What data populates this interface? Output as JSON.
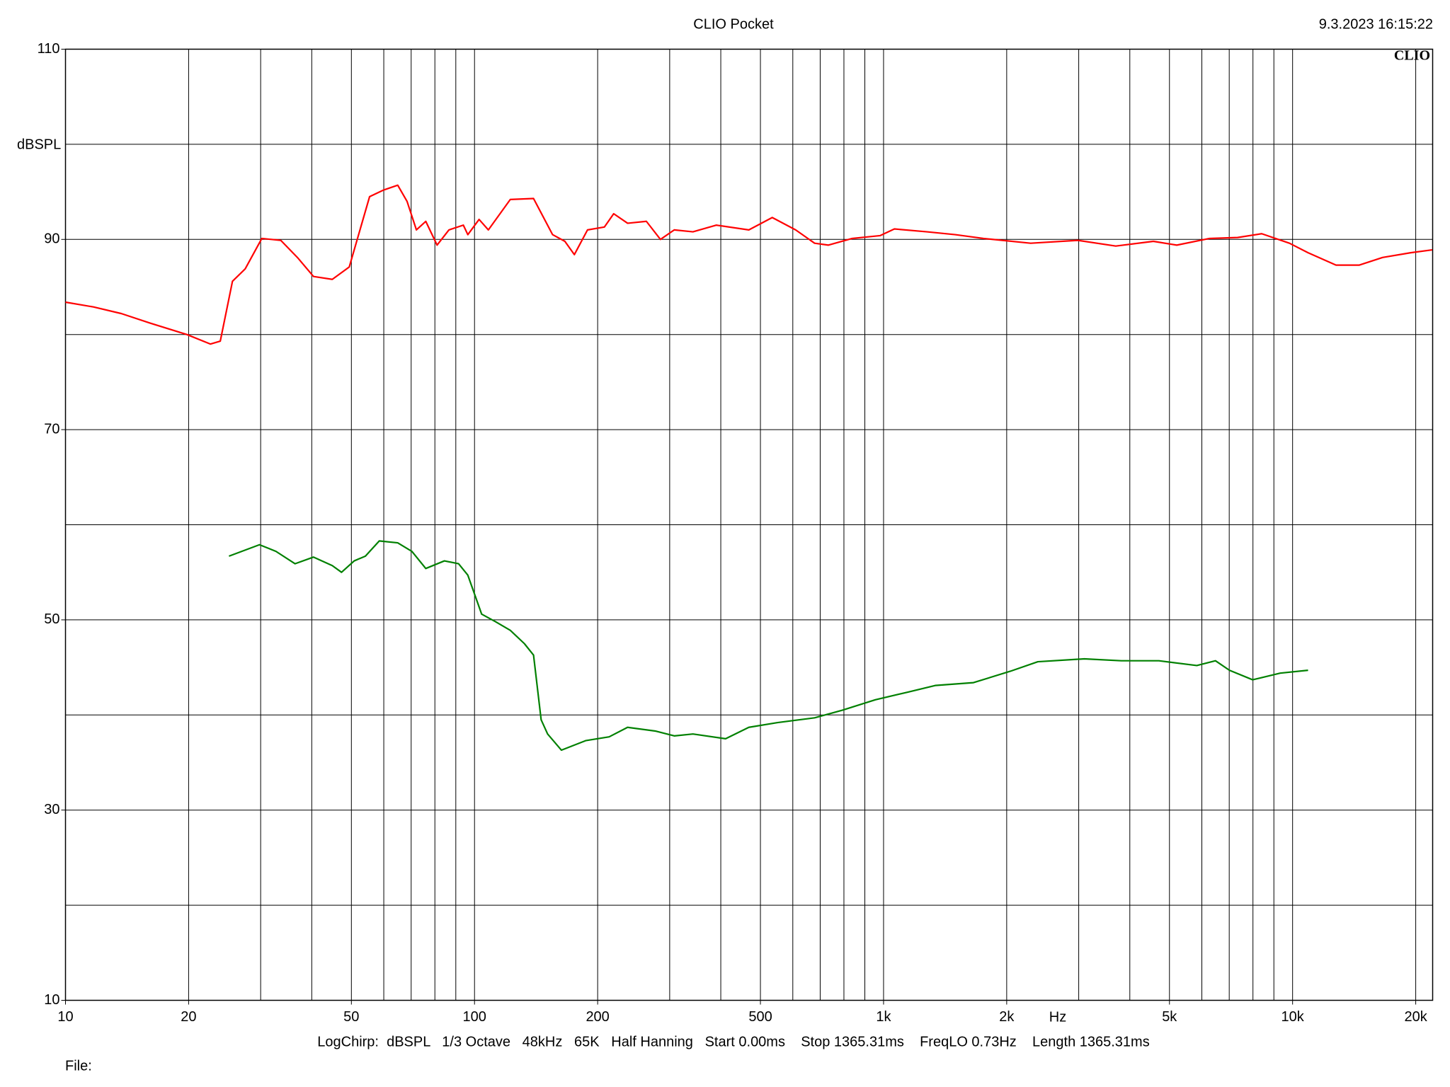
{
  "chart_data": {
    "type": "line",
    "title": "CLIO Pocket",
    "timestamp": "9.3.2023 16:15:22",
    "y_label": "dBSPL",
    "x_label": "Hz",
    "logo": "CLIO",
    "footer": "LogChirp:  dBSPL   1/3 Octave   48kHz   65K   Half Hanning   Start 0.00ms    Stop 1365.31ms    FreqLO 0.73Hz    Length 1365.31ms",
    "file_label": "File:",
    "xscale": "log",
    "xlim": [
      10,
      22000
    ],
    "ylim": [
      10,
      110
    ],
    "xticks": [
      10,
      20,
      50,
      100,
      200,
      500,
      {
        "value": 1000,
        "label": "1k"
      },
      {
        "value": 2000,
        "label": "2k"
      },
      {
        "value": 5000,
        "label": "5k"
      },
      {
        "value": 10000,
        "label": "10k"
      },
      {
        "value": 20000,
        "label": "20k"
      }
    ],
    "yticks": [
      10,
      30,
      50,
      70,
      90,
      110
    ],
    "xgrid": [
      20,
      30,
      40,
      50,
      60,
      70,
      80,
      90,
      100,
      200,
      300,
      400,
      500,
      600,
      700,
      800,
      900,
      1000,
      2000,
      3000,
      4000,
      5000,
      6000,
      7000,
      8000,
      9000,
      10000,
      20000
    ],
    "ygrid": [
      20,
      30,
      40,
      50,
      60,
      70,
      80,
      90,
      100
    ],
    "series": [
      {
        "color": "#ff0000",
        "x": [
          10,
          11.7,
          13.7,
          16.1,
          19.8,
          22.6,
          23.9,
          25.6,
          27.5,
          30.2,
          33.6,
          36.9,
          40.4,
          44.9,
          49.4,
          55.4,
          60,
          64.9,
          68.4,
          72.1,
          76,
          81,
          86.6,
          93.9,
          96.3,
          102.6,
          108.1,
          122.3,
          139.4,
          155.2,
          166.3,
          175.4,
          188.9,
          207.7,
          218.9,
          236.7,
          263.1,
          284.8,
          307.8,
          342,
          389.8,
          468.4,
          534.4,
          609.7,
          678.3,
          733.3,
          838,
          981.5,
          1063,
          1277,
          1497,
          1755,
          2289,
          2986,
          3696,
          4567,
          5210,
          6264,
          7335,
          8404,
          9825,
          10910,
          12770,
          14560,
          16600,
          19440,
          21950
        ],
        "values": [
          83.4,
          82.9,
          82.2,
          81.2,
          80.0,
          79.0,
          79.3,
          85.6,
          86.9,
          90.1,
          89.9,
          88.1,
          86.1,
          85.8,
          87.1,
          94.5,
          95.2,
          95.7,
          94.0,
          91.0,
          91.9,
          89.4,
          91.0,
          91.5,
          90.5,
          92.1,
          91.0,
          94.2,
          94.3,
          90.5,
          89.8,
          88.4,
          91.0,
          91.3,
          92.7,
          91.7,
          91.9,
          90.0,
          91.0,
          90.8,
          91.5,
          91.0,
          92.3,
          91.0,
          89.6,
          89.4,
          90.1,
          90.4,
          91.1,
          90.8,
          90.5,
          90.1,
          89.6,
          89.9,
          89.3,
          89.8,
          89.4,
          90.1,
          90.2,
          90.6,
          89.6,
          88.6,
          87.3,
          87.3,
          88.1,
          88.6,
          88.9
        ]
      },
      {
        "color": "#008000",
        "x": [
          25.1,
          29.8,
          32.7,
          36.4,
          40.4,
          44.9,
          47.3,
          50.8,
          54.1,
          58.5,
          64.9,
          70.3,
          76,
          84.4,
          91.4,
          96.3,
          104.1,
          112.6,
          122.3,
          132.4,
          139.4,
          145.5,
          150.9,
          163.1,
          186.9,
          213.4,
          236.7,
          277.6,
          307.8,
          342,
          411,
          468.4,
          550.6,
          678.3,
          792.9,
          954.9,
          1146,
          1337,
          1659,
          2042,
          2383,
          3097,
          3813,
          4712,
          5832,
          6478,
          7008,
          7986,
          9326,
          10910
        ],
        "values": [
          56.7,
          57.9,
          57.2,
          55.9,
          56.6,
          55.7,
          55.0,
          56.2,
          56.7,
          58.3,
          58.1,
          57.2,
          55.4,
          56.2,
          55.9,
          54.7,
          50.6,
          49.8,
          48.9,
          47.5,
          46.3,
          39.5,
          38.0,
          36.3,
          37.3,
          37.7,
          38.7,
          38.3,
          37.8,
          38.0,
          37.5,
          38.7,
          39.2,
          39.7,
          40.5,
          41.6,
          42.4,
          43.1,
          43.4,
          44.6,
          45.6,
          45.9,
          45.7,
          45.7,
          45.2,
          45.7,
          44.7,
          43.7,
          44.4,
          44.7
        ]
      }
    ]
  }
}
